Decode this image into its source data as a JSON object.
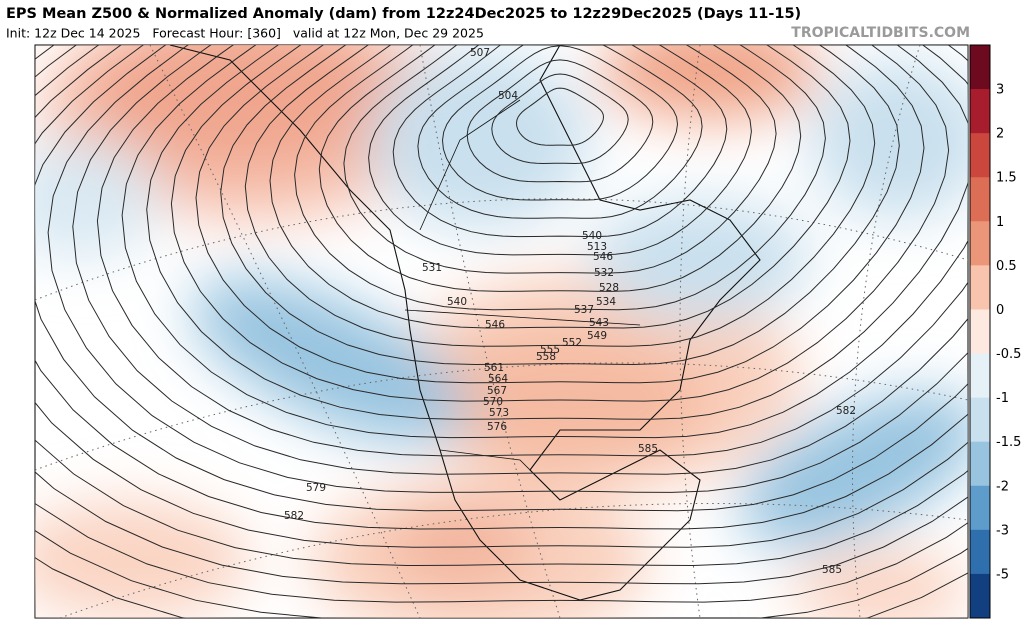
{
  "header": {
    "title": "EPS Mean Z500 & Normalized Anomaly (dam) from 12z24Dec2025 to 12z29Dec2025 (Days 11-15)",
    "subtitle": "Init: 12z Dec 14 2025   Forecast Hour: [360]   valid at 12z Mon, Dec 29 2025",
    "brand": "TROPICALTIDBITS.COM"
  },
  "colorbar": {
    "ticks": [
      3,
      2,
      1.5,
      1,
      0.5,
      0,
      -0.5,
      -1,
      -1.5,
      -2,
      -3,
      -5
    ],
    "colors": [
      "#6e0a1f",
      "#a81d2d",
      "#cb473d",
      "#dc6e55",
      "#ec9679",
      "#f8c4ad",
      "#fde9df",
      "#e6f0f7",
      "#c9e0ee",
      "#98c4e0",
      "#5d9ccb",
      "#2f6fae",
      "#123f80"
    ]
  },
  "contour_labels": [
    507,
    504,
    540,
    513,
    546,
    532,
    528,
    534,
    537,
    543,
    549,
    552,
    555,
    558,
    561,
    564,
    567,
    570,
    573,
    576,
    531,
    540,
    546,
    579,
    582,
    582,
    585,
    585
  ]
}
